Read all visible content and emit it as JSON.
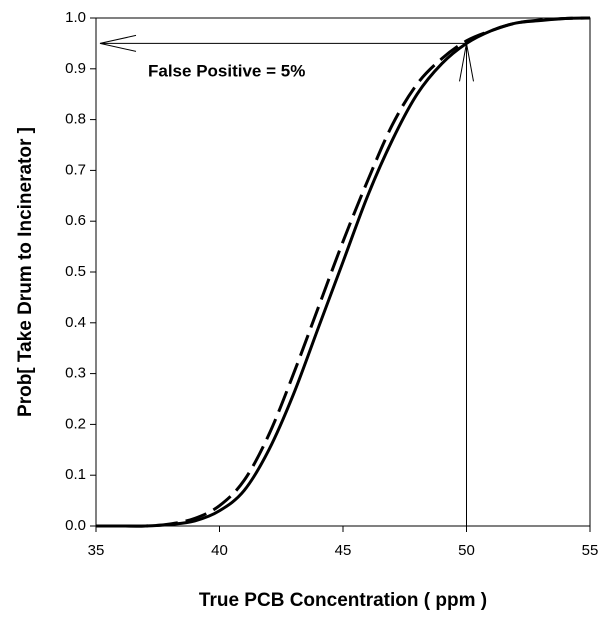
{
  "chart_data": {
    "type": "line",
    "x_label": "True PCB Concentration ( ppm )",
    "y_label": "Prob[ Take Drum to Incinerator ]",
    "x": [
      35,
      36,
      37,
      38,
      39,
      40,
      41,
      42,
      43,
      44,
      45,
      46,
      47,
      48,
      49,
      50,
      51,
      52,
      53,
      54,
      55
    ],
    "series": [
      {
        "color": "#000000",
        "dash": "solid",
        "values": [
          0,
          0,
          0,
          0.003,
          0.01,
          0.03,
          0.07,
          0.15,
          0.26,
          0.39,
          0.52,
          0.65,
          0.76,
          0.85,
          0.91,
          0.95,
          0.975,
          0.99,
          0.995,
          0.999,
          1.0
        ]
      },
      {
        "color": "#000000",
        "dash": "dashed",
        "values": [
          0,
          0,
          0,
          0.004,
          0.015,
          0.04,
          0.09,
          0.18,
          0.3,
          0.43,
          0.56,
          0.68,
          0.79,
          0.87,
          0.92,
          0.955,
          0.975,
          0.99,
          0.996,
          0.999,
          1.0
        ]
      }
    ],
    "xlim": [
      35,
      55
    ],
    "xticks": [
      35,
      40,
      45,
      50,
      55
    ],
    "ylim": [
      0,
      1
    ],
    "yticks": [
      {
        "value": 0,
        "label": "0.0"
      },
      0.1,
      0.2,
      0.3,
      0.4,
      0.5,
      0.6,
      0.7,
      0.8,
      0.9,
      {
        "value": 1,
        "label": "1.0"
      }
    ],
    "annotation": {
      "text": "False Positive = 5%",
      "x": 50,
      "y": 0.95
    }
  }
}
